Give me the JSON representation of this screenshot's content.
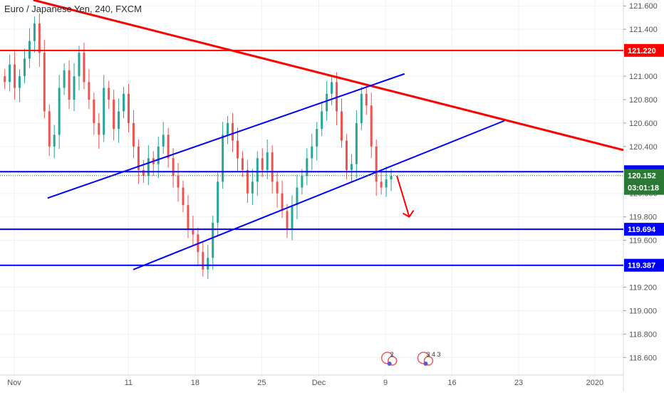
{
  "chart_data": {
    "type": "candlestick",
    "title": "Euro / Japanese Yen, 240, FXCM",
    "y_range": [
      118.45,
      121.65
    ],
    "y_ticks": [
      "121.600",
      "121.400",
      "121.200",
      "121.000",
      "120.800",
      "120.600",
      "120.400",
      "120.000",
      "119.800",
      "119.600",
      "119.200",
      "119.000",
      "118.800",
      "118.600"
    ],
    "x_ticks": [
      "Nov",
      "11",
      "18",
      "25",
      "Dec",
      "9",
      "16",
      "23",
      "2020"
    ],
    "x_tick_index": [
      0,
      12,
      19,
      26,
      32,
      39,
      46,
      53,
      61
    ],
    "x_range_index": [
      -1.5,
      64
    ],
    "series_closes": [
      120.95,
      121.1,
      120.9,
      121.0,
      121.15,
      121.3,
      121.45,
      121.2,
      120.7,
      120.4,
      120.5,
      120.9,
      121.05,
      120.8,
      121.0,
      121.2,
      120.95,
      120.8,
      120.6,
      120.5,
      120.9,
      120.8,
      120.55,
      120.7,
      120.85,
      120.6,
      120.4,
      120.2,
      120.15,
      120.3,
      120.25,
      120.4,
      120.5,
      120.3,
      120.15,
      120.05,
      119.9,
      119.7,
      119.65,
      119.5,
      119.35,
      119.45,
      119.75,
      120.1,
      120.5,
      120.6,
      120.45,
      120.3,
      120.2,
      120.0,
      120.1,
      120.3,
      120.2,
      120.35,
      120.1,
      120.0,
      119.85,
      119.7,
      119.9,
      120.05,
      120.15,
      120.3,
      120.4,
      120.55,
      120.7,
      120.85,
      120.95,
      120.7,
      120.45,
      120.2,
      120.25,
      120.6,
      120.85,
      120.75,
      120.4,
      120.1,
      120.05,
      120.12,
      120.15
    ],
    "horizontal_levels": [
      {
        "value": 121.22,
        "label": "121.220",
        "color": "#ff0000"
      },
      {
        "value": 120.185,
        "label": "120.185",
        "color": "#0000ff"
      },
      {
        "value": 119.694,
        "label": "119.694",
        "color": "#0000ff"
      },
      {
        "value": 119.387,
        "label": "119.387",
        "color": "#0000ff"
      }
    ],
    "current_price": {
      "label": "120.152",
      "countdown": "03:01:18",
      "color": "#2a7a33"
    },
    "trendlines": [
      {
        "color": "#ff0000",
        "from": [
          2,
          121.65
        ],
        "to": [
          64,
          120.37
        ]
      },
      {
        "color": "#0000ff",
        "from": [
          3.5,
          119.96
        ],
        "to": [
          41,
          121.02
        ]
      },
      {
        "color": "#0000ff",
        "from": [
          12.5,
          119.35
        ],
        "to": [
          51.5,
          120.62
        ]
      }
    ],
    "projection_arrow": {
      "color": "#ff0000",
      "from": [
        40.2,
        120.15
      ],
      "to": [
        41.5,
        119.8
      ]
    },
    "event_markers": [
      {
        "x": 39.2,
        "label": "2"
      },
      {
        "x": 43.0,
        "label": "3 4 3"
      }
    ],
    "grid": true
  }
}
